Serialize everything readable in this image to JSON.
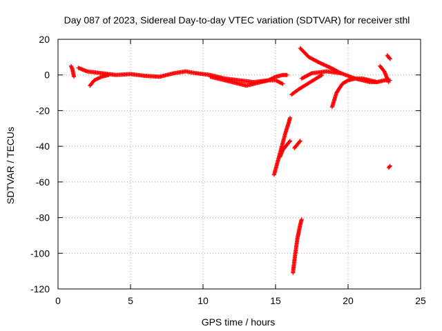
{
  "chart_data": {
    "type": "scatter",
    "title": "Day 087 of 2023, Sidereal Day-to-day VTEC variation (SDTVAR) for receiver sthl",
    "xlabel": "GPS time / hours",
    "ylabel": "SDTVAR / TECUs",
    "xlim": [
      0,
      25
    ],
    "ylim": [
      -120,
      20
    ],
    "xticks": [
      0,
      5,
      10,
      15,
      20,
      25
    ],
    "yticks": [
      -120,
      -100,
      -80,
      -60,
      -40,
      -20,
      0,
      20
    ],
    "grid": true,
    "marker": "+",
    "color": "#ff0000",
    "segments": [
      {
        "x": [
          0.9,
          1.0,
          1.1
        ],
        "y": [
          5,
          3,
          -1
        ]
      },
      {
        "x": [
          1.4,
          2.0,
          3.0,
          4.0,
          5.0,
          6.0,
          7.0,
          8.0,
          8.8,
          9.5,
          10.5,
          11.5,
          12.5,
          13.5,
          14.5,
          15.0,
          15.5,
          15.8
        ],
        "y": [
          4,
          2,
          1,
          0,
          0.5,
          -0.5,
          -1,
          1,
          2,
          1,
          0,
          -2,
          -3,
          -4,
          -3,
          -1,
          0,
          0
        ]
      },
      {
        "x": [
          2.2,
          2.5,
          3.0,
          3.5
        ],
        "y": [
          -6,
          -3,
          -1,
          0
        ]
      },
      {
        "x": [
          10.5,
          11.5,
          12.5,
          13.0,
          14.0,
          14.5,
          15.0,
          15.5
        ],
        "y": [
          -1,
          -3,
          -5,
          -6,
          -4,
          -3,
          -3,
          -5
        ]
      },
      {
        "x": [
          14.9,
          15.1,
          15.3,
          15.5,
          15.7,
          15.9,
          16.0
        ],
        "y": [
          -56,
          -50,
          -44,
          -38,
          -32,
          -27,
          -24
        ]
      },
      {
        "x": [
          15.3,
          15.5,
          15.7,
          15.9,
          16.0
        ],
        "y": [
          -46,
          -42,
          -40,
          -38,
          -37
        ]
      },
      {
        "x": [
          16.3,
          16.5,
          16.7
        ],
        "y": [
          -41,
          -39,
          -37
        ]
      },
      {
        "x": [
          16.2,
          16.3,
          16.4,
          16.5,
          16.6,
          16.7,
          16.8
        ],
        "y": [
          -111,
          -104,
          -98,
          -92,
          -88,
          -84,
          -81
        ]
      },
      {
        "x": [
          16.1,
          16.6,
          17.2,
          17.8,
          18.2
        ],
        "y": [
          -11,
          -8,
          -5,
          -2,
          0
        ]
      },
      {
        "x": [
          16.7,
          17.3,
          18.0,
          18.8,
          19.5
        ],
        "y": [
          15,
          10,
          7,
          4,
          1
        ]
      },
      {
        "x": [
          16.8,
          17.5,
          18.5,
          19.5,
          20.5,
          21.5,
          22.0
        ],
        "y": [
          -2,
          1,
          2,
          1,
          -2,
          -4,
          -4
        ]
      },
      {
        "x": [
          18.9,
          19.2,
          19.6,
          20.0,
          20.5,
          21.0,
          21.5,
          22.0,
          22.5,
          22.9
        ],
        "y": [
          -18,
          -10,
          -5,
          -3,
          -2,
          -2,
          -3,
          -4,
          -3,
          -3
        ]
      },
      {
        "x": [
          22.2,
          22.5,
          22.8
        ],
        "y": [
          5,
          2,
          -4
        ]
      },
      {
        "x": [
          22.7,
          22.9
        ],
        "y": [
          11,
          9
        ]
      },
      {
        "x": [
          22.8,
          22.9
        ],
        "y": [
          -52,
          -51
        ]
      }
    ]
  }
}
